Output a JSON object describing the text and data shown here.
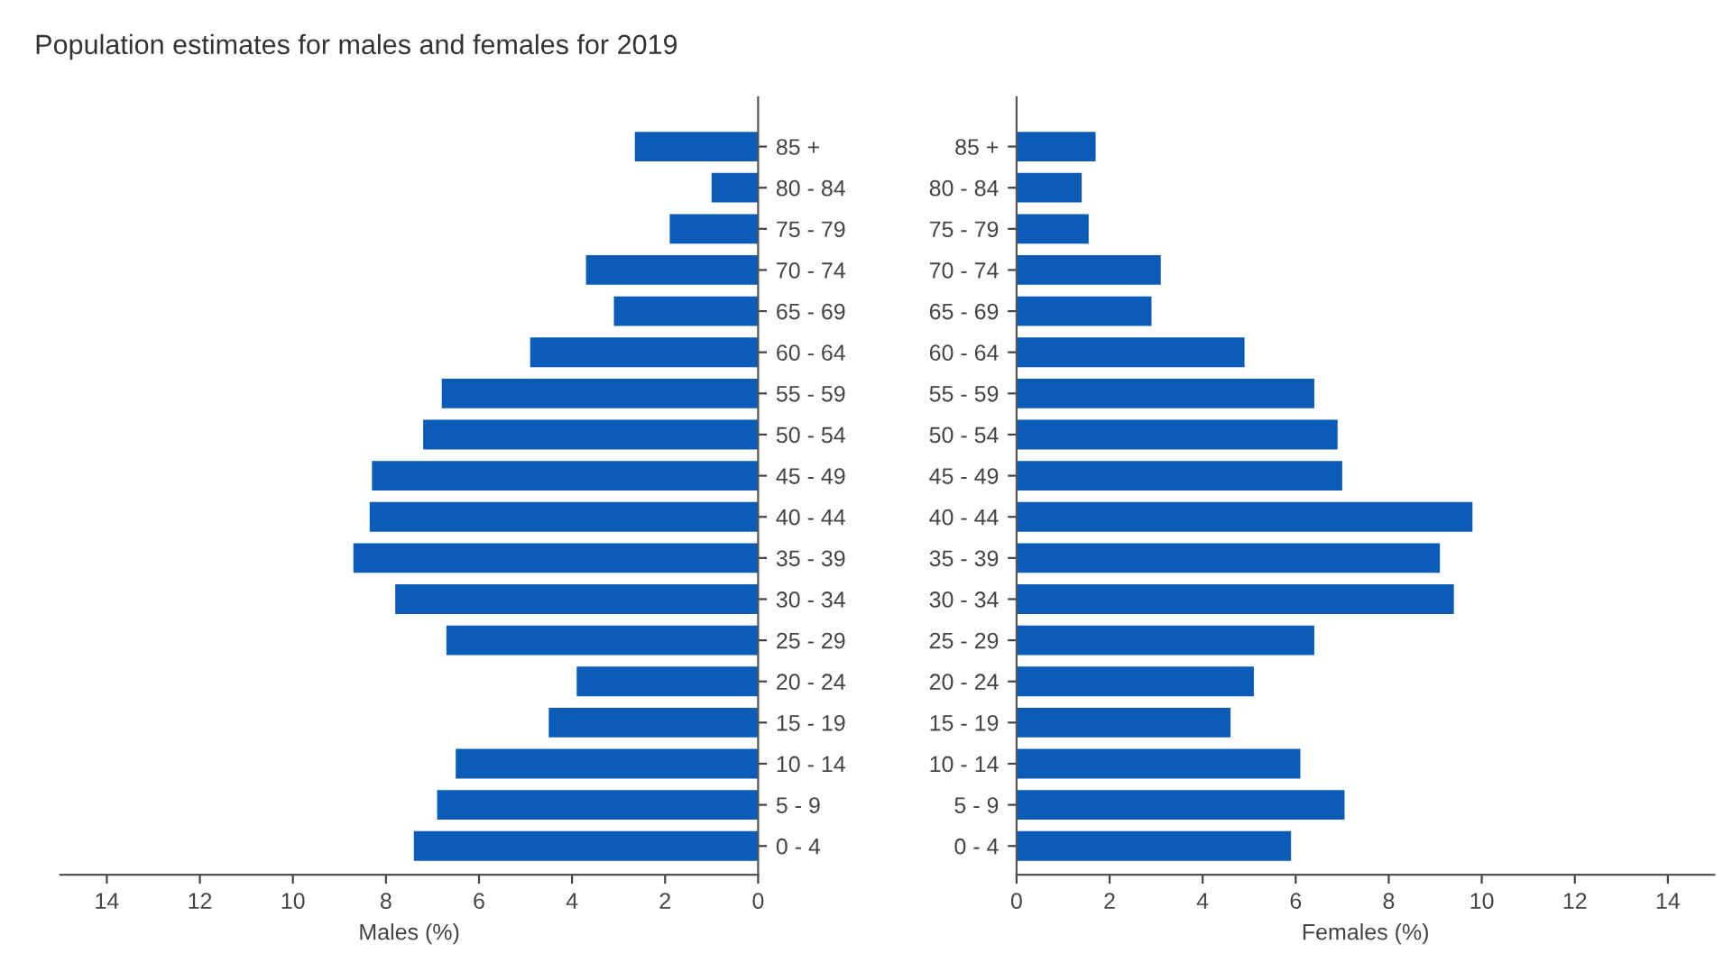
{
  "chart_data": [
    {
      "type": "bar",
      "title": "Population estimates for males and females for 2019",
      "orientation": "horizontal",
      "xlabel": "Males (%)",
      "categories": [
        "85 +",
        "80 - 84",
        "75 - 79",
        "70 - 74",
        "65 - 69",
        "60 - 64",
        "55 - 59",
        "50 - 54",
        "45 - 49",
        "40 - 44",
        "35 - 39",
        "30 - 34",
        "25 - 29",
        "20 - 24",
        "15 - 19",
        "10 - 14",
        "5 - 9",
        "0 - 4"
      ],
      "series": [
        {
          "color": "#0a5cb8",
          "values": [
            2.65,
            1.0,
            1.9,
            3.7,
            3.1,
            4.9,
            6.8,
            7.2,
            8.3,
            8.35,
            8.7,
            7.8,
            6.7,
            3.9,
            4.5,
            6.5,
            6.9,
            7.4
          ]
        }
      ],
      "xlim": [
        15,
        0
      ],
      "xticks": [
        14,
        12,
        10,
        8,
        6,
        4,
        2,
        0
      ],
      "grid": false
    },
    {
      "type": "bar",
      "orientation": "horizontal",
      "xlabel": "Females (%)",
      "categories": [
        "85 +",
        "80 - 84",
        "75 - 79",
        "70 - 74",
        "65 - 69",
        "60 - 64",
        "55 - 59",
        "50 - 54",
        "45 - 49",
        "40 - 44",
        "35 - 39",
        "30 - 34",
        "25 - 29",
        "20 - 24",
        "15 - 19",
        "10 - 14",
        "5 - 9",
        "0 - 4"
      ],
      "series": [
        {
          "color": "#0a5cb8",
          "values": [
            1.7,
            1.4,
            1.55,
            3.1,
            2.9,
            4.9,
            6.4,
            6.9,
            7.0,
            9.8,
            9.1,
            9.4,
            6.4,
            5.1,
            4.6,
            6.1,
            7.05,
            5.9
          ]
        }
      ],
      "xlim": [
        0,
        15
      ],
      "xticks": [
        0,
        2,
        4,
        6,
        8,
        10,
        12,
        14
      ],
      "grid": false
    }
  ]
}
